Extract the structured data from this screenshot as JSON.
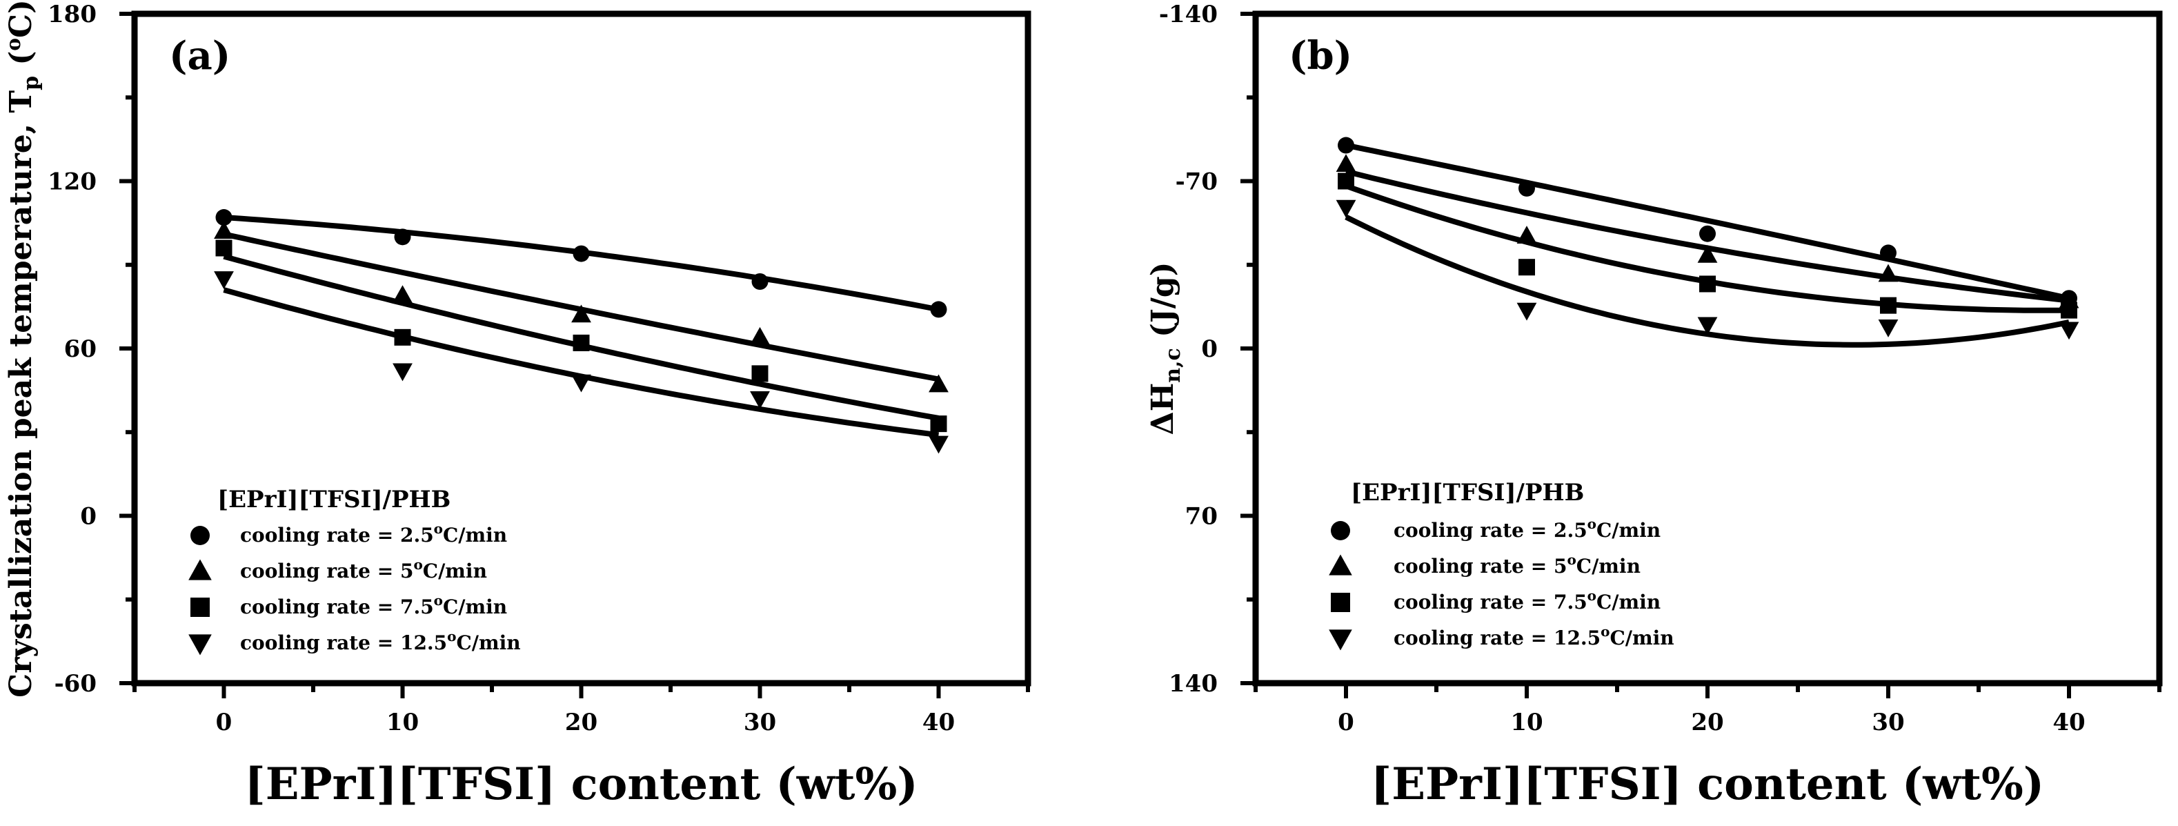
{
  "chart_data": [
    {
      "type": "scatter",
      "panel": "(a)",
      "xlabel": "[EPrI][TFSI] content (wt%)",
      "ylabel": "Crystallization peak temperature, T",
      "ylabel_sub": "p",
      "ylabel_unit": " (",
      "ylabel_unit_sup": "o",
      "ylabel_unit_tail": "C)",
      "xlim": [
        -5,
        45
      ],
      "ylim": [
        -60,
        180
      ],
      "x_ticks": [
        0,
        10,
        20,
        30,
        40
      ],
      "x_tick_labels": [
        "0",
        "10",
        "20",
        "30",
        "40"
      ],
      "y_ticks": [
        -60,
        0,
        60,
        120,
        180
      ],
      "y_tick_labels": [
        "-60",
        "0",
        "60",
        "120",
        "180"
      ],
      "legend_title": "[EPrI][TFSI]/PHB",
      "legend_position": "bottom-left",
      "x": [
        0,
        10,
        20,
        30,
        40
      ],
      "series": [
        {
          "name": "cooling rate = 2.5oC/min",
          "label_pre": "cooling rate = 2.5",
          "label_sup": "o",
          "label_post": "C/min",
          "marker": "circle",
          "values": [
            107,
            100,
            94,
            84,
            74
          ],
          "fit": [
            107,
            94.5,
            74
          ]
        },
        {
          "name": "cooling rate = 5oC/min",
          "label_pre": "cooling rate = 5",
          "label_sup": "o",
          "label_post": "C/min",
          "marker": "triangle-up",
          "values": [
            102,
            79,
            72,
            64,
            47
          ],
          "fit": [
            101,
            74,
            49
          ]
        },
        {
          "name": "cooling rate = 7.5oC/min",
          "label_pre": "cooling rate = 7.5",
          "label_sup": "o",
          "label_post": "C/min",
          "marker": "square",
          "values": [
            96,
            64,
            62,
            51,
            33
          ],
          "fit": [
            93,
            61,
            35
          ]
        },
        {
          "name": "cooling rate = 12.5oC/min",
          "label_pre": "cooling rate = 12.5",
          "label_sup": "o",
          "label_post": "C/min",
          "marker": "triangle-down",
          "values": [
            85,
            52,
            48,
            42,
            26
          ],
          "fit": [
            81,
            50,
            29
          ]
        }
      ]
    },
    {
      "type": "scatter",
      "panel": "(b)",
      "xlabel": "[EPrI][TFSI] content (wt%)",
      "ylabel": "ΔH",
      "ylabel_sub": "n,c",
      "ylabel_unit": " (J/g)",
      "xlim": [
        -5,
        45
      ],
      "ylim": [
        -140,
        140
      ],
      "y_inverted": true,
      "x_ticks": [
        0,
        10,
        20,
        30,
        40
      ],
      "x_tick_labels": [
        "0",
        "10",
        "20",
        "30",
        "40"
      ],
      "y_ticks": [
        -140,
        -70,
        0,
        70,
        140
      ],
      "y_tick_labels": [
        "-140",
        "-70",
        "0",
        "70",
        "140"
      ],
      "legend_title": "[EPrI][TFSI]/PHB",
      "legend_position": "bottom-left",
      "x": [
        0,
        10,
        20,
        30,
        40
      ],
      "series": [
        {
          "name": "cooling rate = 2.5oC/min",
          "label_pre": "cooling rate = 2.5",
          "label_sup": "o",
          "label_post": "C/min",
          "marker": "circle",
          "values": [
            -85,
            -67,
            -48,
            -40,
            -21
          ],
          "fit": [
            -85,
            -53.5,
            -21
          ]
        },
        {
          "name": "cooling rate = 5oC/min",
          "label_pre": "cooling rate = 5",
          "label_sup": "o",
          "label_post": "C/min",
          "marker": "triangle-up",
          "values": [
            -77,
            -47,
            -39,
            -31,
            -20
          ],
          "fit": [
            -74,
            -42,
            -20
          ]
        },
        {
          "name": "cooling rate = 7.5oC/min",
          "label_pre": "cooling rate = 7.5",
          "label_sup": "o",
          "label_post": "C/min",
          "marker": "square",
          "values": [
            -70,
            -34,
            -27,
            -18,
            -16
          ],
          "fit": [
            -68,
            -28,
            -16
          ]
        },
        {
          "name": "cooling rate = 12.5oC/min",
          "label_pre": "cooling rate = 12.5",
          "label_sup": "o",
          "label_post": "C/min",
          "marker": "triangle-down",
          "values": [
            -59,
            -16,
            -10,
            -9,
            -8
          ],
          "fit": [
            -55,
            -6,
            -11
          ]
        }
      ]
    }
  ]
}
